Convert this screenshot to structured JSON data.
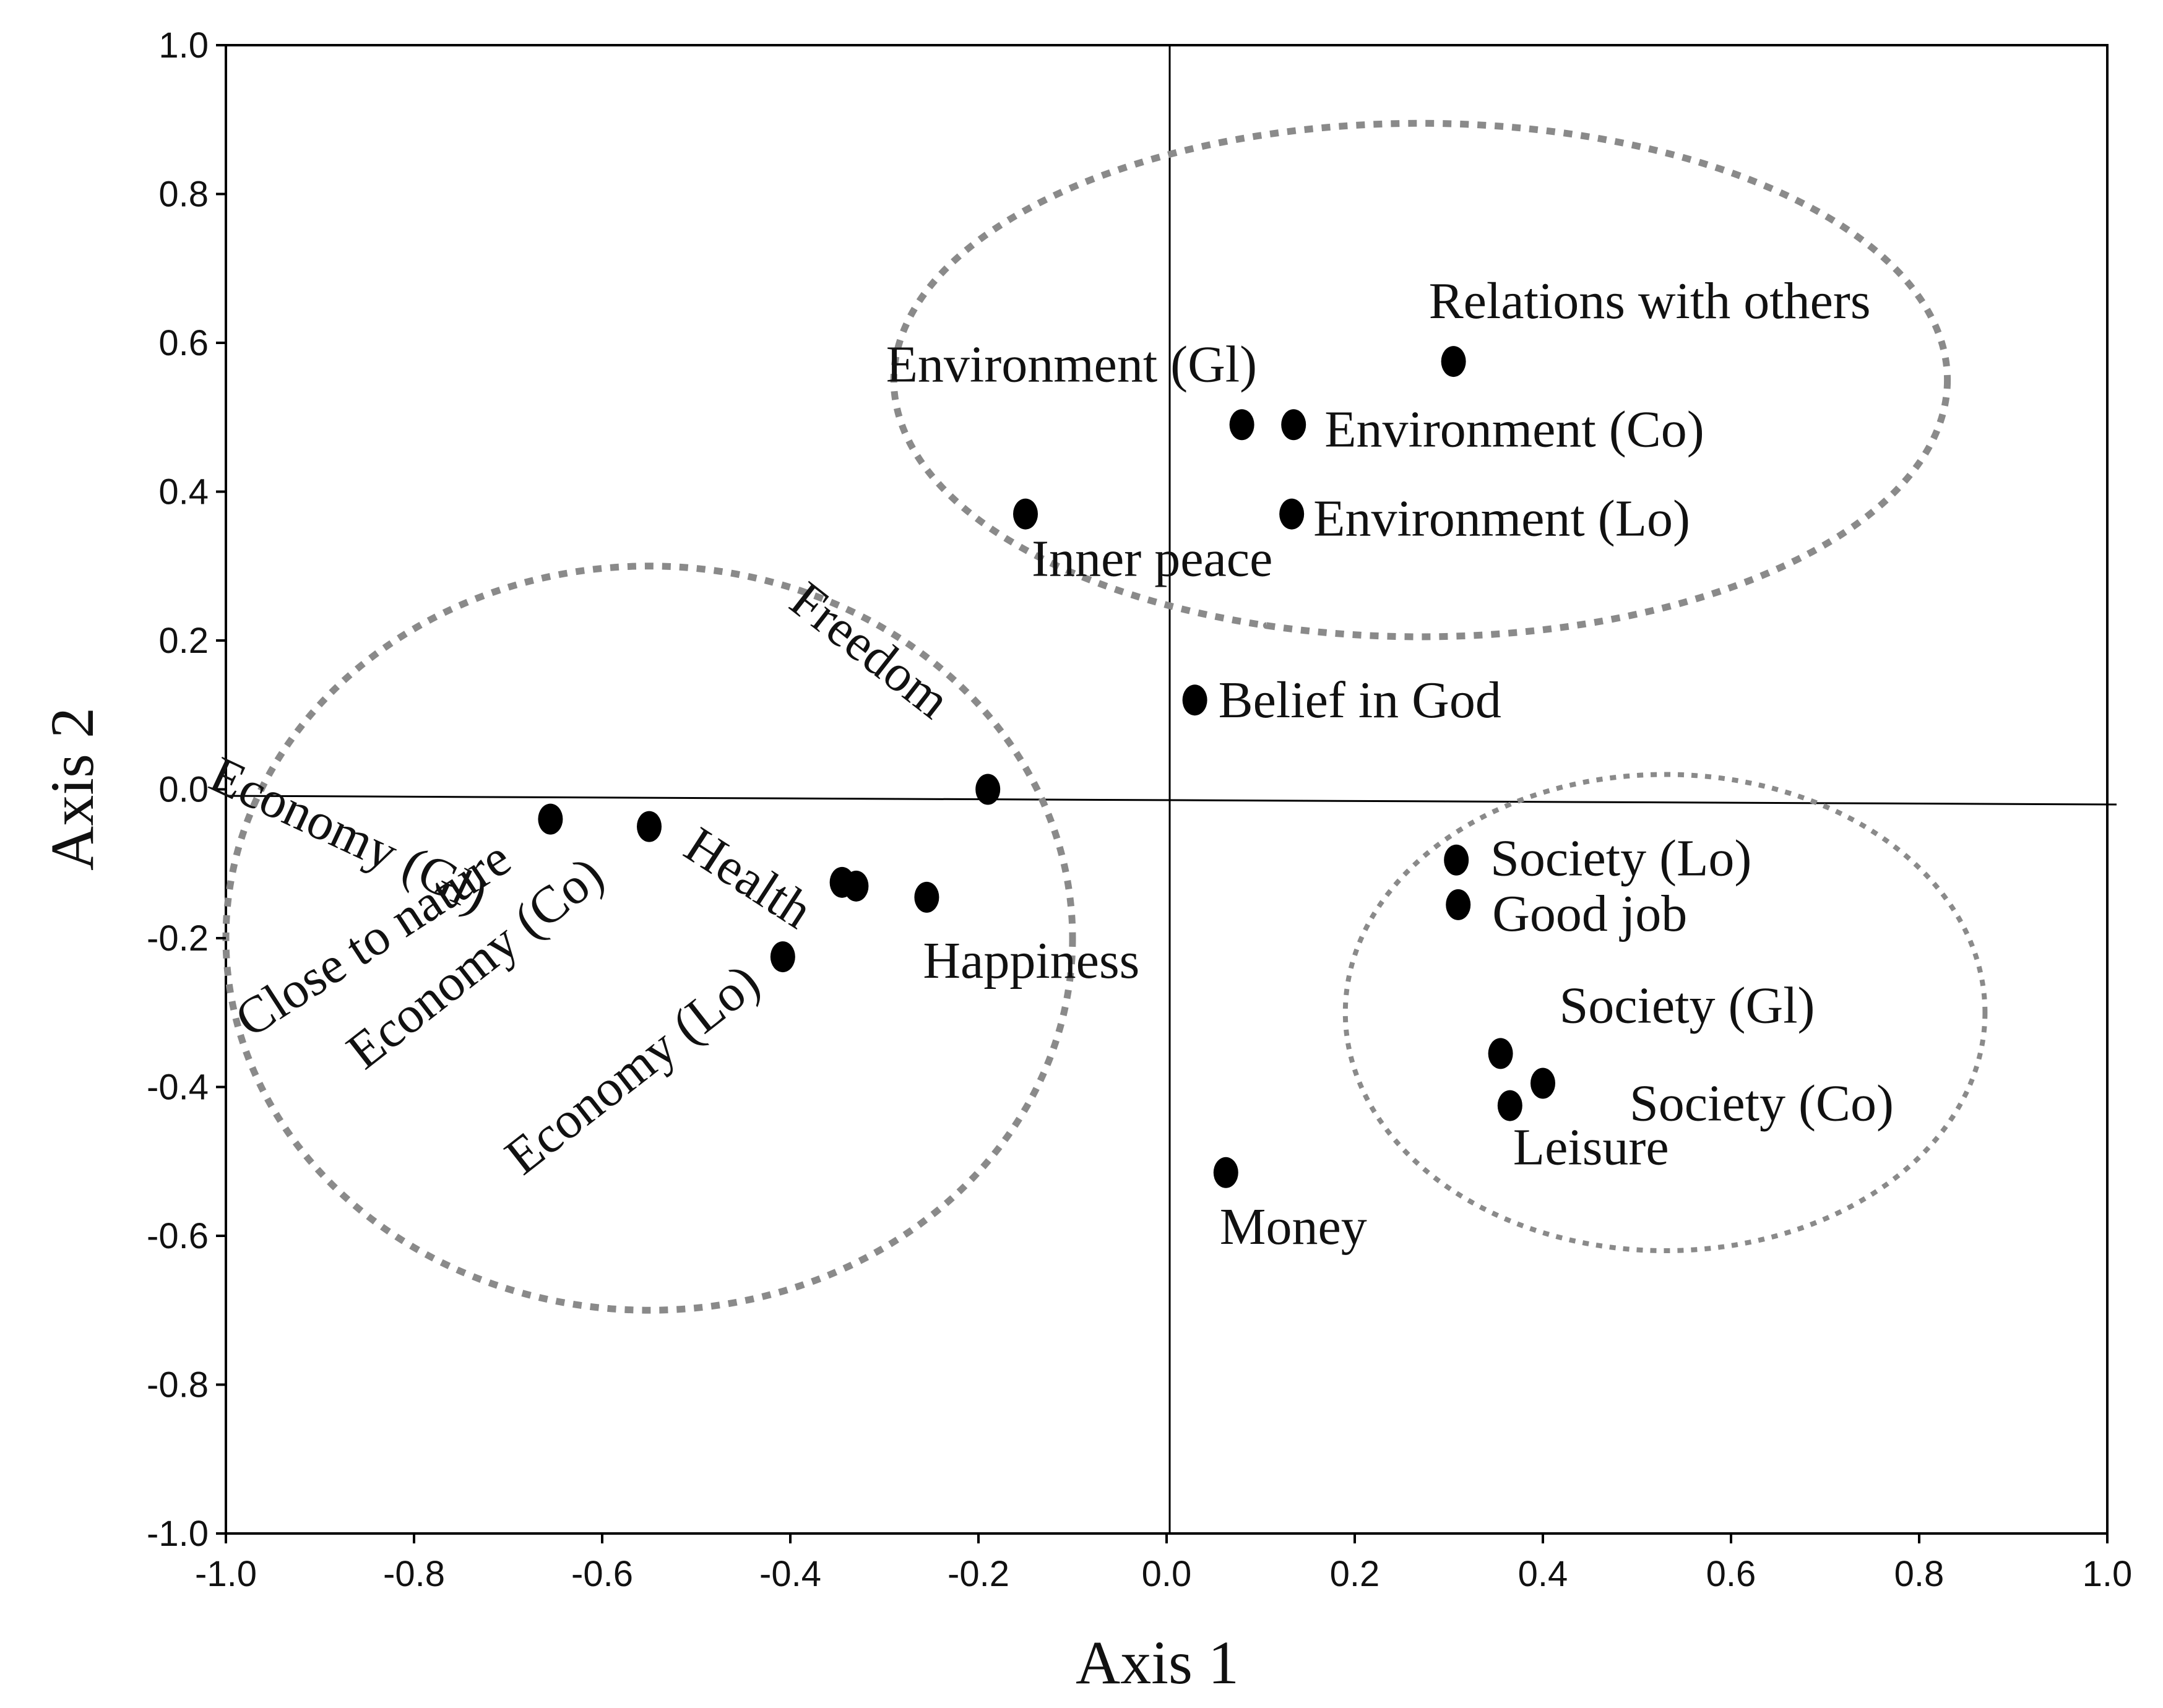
{
  "chart_data": {
    "type": "scatter",
    "title": "",
    "xlabel": "Axis 1",
    "ylabel": "Axis 2",
    "xlim": [
      -1.0,
      1.0
    ],
    "ylim": [
      -1.0,
      1.0
    ],
    "xticks": [
      "-1.0",
      "-0.8",
      "-0.6",
      "-0.4",
      "-0.2",
      "0.0",
      "0.2",
      "0.4",
      "0.6",
      "0.8",
      "1.0"
    ],
    "yticks": [
      "1.0",
      "0.8",
      "0.6",
      "0.4",
      "0.2",
      "0.0",
      "-0.2",
      "-0.4",
      "-0.6",
      "-0.8",
      "-1.0"
    ],
    "grid": false,
    "points": [
      {
        "label": "Relations with others",
        "x": 0.305,
        "y": 0.575
      },
      {
        "label": "Environment (Gl)",
        "x": 0.08,
        "y": 0.49
      },
      {
        "label": "Environment (Co)",
        "x": 0.135,
        "y": 0.49
      },
      {
        "label": "Environment (Lo)",
        "x": 0.133,
        "y": 0.37
      },
      {
        "label": "Inner peace",
        "x": -0.15,
        "y": 0.37
      },
      {
        "label": "Belief in God",
        "x": 0.03,
        "y": 0.12
      },
      {
        "label": "Freedom",
        "x": -0.19,
        "y": 0.0
      },
      {
        "label": "Economy (Gl)",
        "x": -0.33,
        "y": -0.13
      },
      {
        "label": "Health",
        "x": -0.345,
        "y": -0.125
      },
      {
        "label": "Happiness",
        "x": -0.255,
        "y": -0.145
      },
      {
        "label": "Close to nature",
        "x": -0.655,
        "y": -0.04
      },
      {
        "label": "Economy (Co)",
        "x": -0.55,
        "y": -0.05
      },
      {
        "label": "Economy (Lo)",
        "x": -0.408,
        "y": -0.225
      },
      {
        "label": "Society (Lo)",
        "x": 0.308,
        "y": -0.095
      },
      {
        "label": "Good job",
        "x": 0.31,
        "y": -0.155
      },
      {
        "label": "Society (Gl)",
        "x": 0.355,
        "y": -0.355
      },
      {
        "label": "Society (Co)",
        "x": 0.4,
        "y": -0.395
      },
      {
        "label": "Leisure",
        "x": 0.365,
        "y": -0.425
      },
      {
        "label": "Money",
        "x": 0.063,
        "y": -0.515
      }
    ],
    "clusters": [
      {
        "cx": 0.27,
        "cy": 0.55,
        "rx": 0.56,
        "ry": 0.345
      },
      {
        "cx": -0.55,
        "cy": -0.2,
        "rx": 0.45,
        "ry": 0.5
      },
      {
        "cx": 0.53,
        "cy": -0.3,
        "rx": 0.34,
        "ry": 0.32
      }
    ]
  }
}
